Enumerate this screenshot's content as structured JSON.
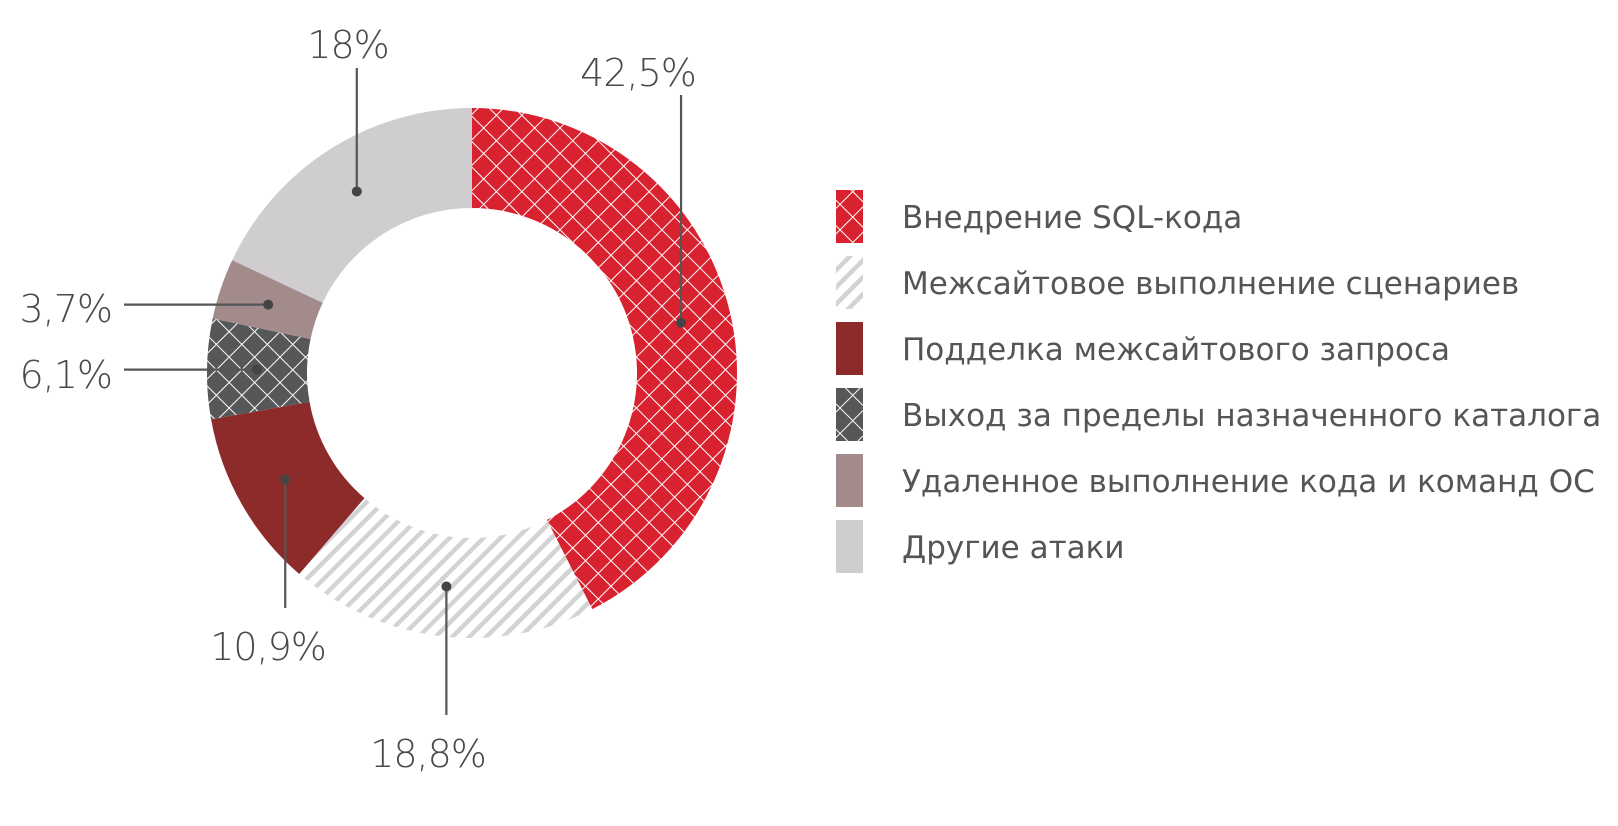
{
  "chart_data": {
    "type": "pie",
    "variant": "donut",
    "start_angle_deg": 0,
    "direction": "clockwise",
    "slices": [
      {
        "name": "Внедрение SQL-кода",
        "value": 42.5,
        "label": "42,5%",
        "color": "#d8222f",
        "pattern": "crosshatch-light"
      },
      {
        "name": "Межсайтовое выполнение сценариев",
        "value": 18.8,
        "label": "18,8%",
        "color": "#d3d3d5",
        "pattern": "diagonal-stripes"
      },
      {
        "name": "Подделка межсайтового запроса",
        "value": 10.9,
        "label": "10,9%",
        "color": "#8c2b29",
        "pattern": "solid"
      },
      {
        "name": "Выход за пределы назначенного каталога",
        "value": 6.1,
        "label": "6,1%",
        "color": "#555759",
        "pattern": "crosshatch-light"
      },
      {
        "name": "Удаленное выполнение кода и команд ОС",
        "value": 3.7,
        "label": "3,7%",
        "color": "#a48b8b",
        "pattern": "solid"
      },
      {
        "name": "Другие атаки",
        "value": 18.0,
        "label": "18%",
        "color": "#cfcdd0",
        "pattern": "solid"
      }
    ],
    "legend_position": "right",
    "title": "",
    "xlabel": "",
    "ylabel": ""
  }
}
